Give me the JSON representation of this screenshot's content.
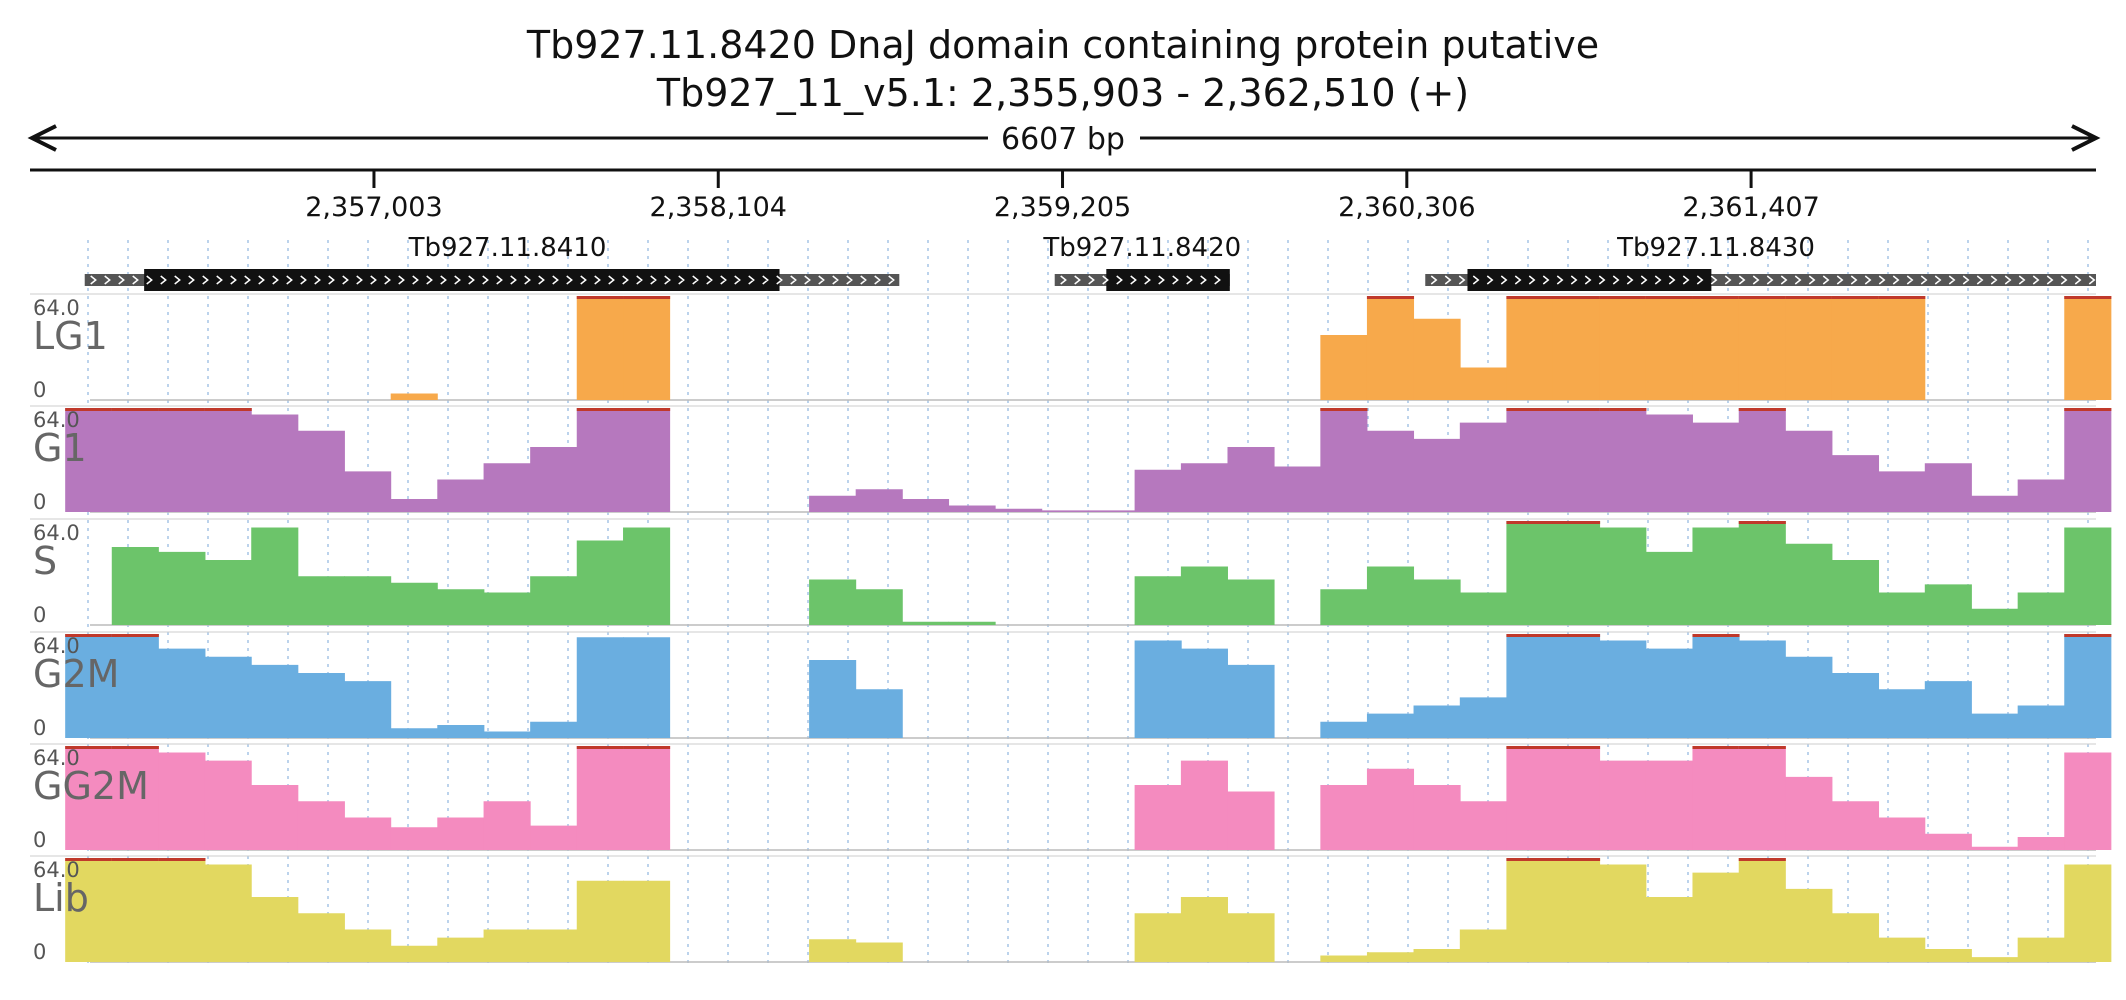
{
  "header": {
    "title_line1": "Tb927.11.8420  DnaJ domain containing protein  putative",
    "title_line2": "Tb927_11_v5.1: 2,355,903 - 2,362,510 (+)"
  },
  "ruler": {
    "length_label": "6607 bp",
    "start": 2355903,
    "end": 2362510
  },
  "chart_data": {
    "type": "area",
    "x_range": [
      2355903,
      2362510
    ],
    "ticks": [
      {
        "pos": 2357003,
        "label": "2,357,003"
      },
      {
        "pos": 2358104,
        "label": "2,358,104"
      },
      {
        "pos": 2359205,
        "label": "2,359,205"
      },
      {
        "pos": 2360306,
        "label": "2,360,306"
      },
      {
        "pos": 2361407,
        "label": "2,361,407"
      }
    ],
    "genes": [
      {
        "name": "Tb927.11.8410",
        "start": 2356078,
        "end": 2358683,
        "cds_start": 2356268,
        "cds_end": 2358300,
        "label_pos": 2357430
      },
      {
        "name": "Tb927.11.8420",
        "start": 2359180,
        "end": 2359740,
        "cds_start": 2359345,
        "cds_end": 2359740,
        "label_pos": 2359460
      },
      {
        "name": "Tb927.11.8430",
        "start": 2360365,
        "end": 2362510,
        "cds_start": 2360500,
        "cds_end": 2361280,
        "label_pos": 2361295
      }
    ],
    "ylim": [
      0,
      64.0
    ],
    "scale_max_label": "64.0",
    "scale_min_label": "0",
    "bin_positions": [
      2356090,
      2356239,
      2356388,
      2356536,
      2356685,
      2356834,
      2356982,
      2357131,
      2357280,
      2357428,
      2357577,
      2357726,
      2357874,
      2358023,
      2358172,
      2358320,
      2358469,
      2358618,
      2358766,
      2358915,
      2359064,
      2359212,
      2359361,
      2359510,
      2359658,
      2359807,
      2359956,
      2360104,
      2360253,
      2360402,
      2360550,
      2360699,
      2360848,
      2360996,
      2361145,
      2361294,
      2361442,
      2361591,
      2361740,
      2361888,
      2362037,
      2362186,
      2362334,
      2362483
    ],
    "series": [
      {
        "name": "LG1",
        "color": "#f7a94b",
        "values": [
          0,
          0,
          0,
          0,
          0,
          0,
          0,
          4,
          0,
          0,
          0,
          64,
          64,
          0,
          0,
          0,
          0,
          0,
          0,
          0,
          0,
          0,
          0,
          0,
          0,
          0,
          0,
          40,
          64,
          50,
          20,
          64,
          64,
          64,
          64,
          64,
          64,
          64,
          64,
          64,
          0,
          0,
          0,
          64
        ]
      },
      {
        "name": "G1",
        "color": "#b678be",
        "values": [
          64,
          64,
          64,
          64,
          60,
          50,
          25,
          8,
          20,
          30,
          40,
          64,
          64,
          0,
          0,
          0,
          10,
          14,
          8,
          4,
          2,
          1,
          1,
          26,
          30,
          40,
          28,
          64,
          50,
          45,
          55,
          64,
          64,
          64,
          60,
          55,
          64,
          50,
          35,
          25,
          30,
          10,
          20,
          64
        ]
      },
      {
        "name": "S",
        "color": "#6cc46a",
        "values": [
          0,
          48,
          45,
          40,
          60,
          30,
          30,
          26,
          22,
          20,
          30,
          52,
          60,
          0,
          0,
          0,
          28,
          22,
          2,
          2,
          0,
          0,
          0,
          30,
          36,
          28,
          0,
          22,
          36,
          28,
          20,
          64,
          64,
          60,
          45,
          60,
          64,
          50,
          40,
          20,
          25,
          10,
          20,
          60
        ]
      },
      {
        "name": "G2M",
        "color": "#6aaee0",
        "values": [
          64,
          64,
          55,
          50,
          45,
          40,
          35,
          6,
          8,
          4,
          10,
          62,
          62,
          0,
          0,
          0,
          48,
          30,
          0,
          0,
          0,
          0,
          0,
          60,
          55,
          45,
          0,
          10,
          15,
          20,
          25,
          64,
          64,
          60,
          55,
          64,
          60,
          50,
          40,
          30,
          35,
          15,
          20,
          64
        ]
      },
      {
        "name": "GG2M",
        "color": "#f48bbf",
        "values": [
          64,
          64,
          60,
          55,
          40,
          30,
          20,
          14,
          20,
          30,
          15,
          64,
          64,
          0,
          0,
          0,
          0,
          0,
          0,
          0,
          0,
          0,
          0,
          40,
          55,
          36,
          0,
          40,
          50,
          40,
          30,
          64,
          64,
          55,
          55,
          64,
          64,
          45,
          30,
          20,
          10,
          2,
          8,
          60
        ]
      },
      {
        "name": "Lib",
        "color": "#e2d860",
        "values": [
          64,
          64,
          64,
          60,
          40,
          30,
          20,
          10,
          15,
          20,
          20,
          50,
          50,
          0,
          0,
          0,
          14,
          12,
          0,
          0,
          0,
          0,
          0,
          30,
          40,
          30,
          0,
          4,
          6,
          8,
          20,
          64,
          64,
          60,
          40,
          55,
          64,
          45,
          30,
          15,
          8,
          3,
          15,
          60
        ]
      }
    ]
  }
}
